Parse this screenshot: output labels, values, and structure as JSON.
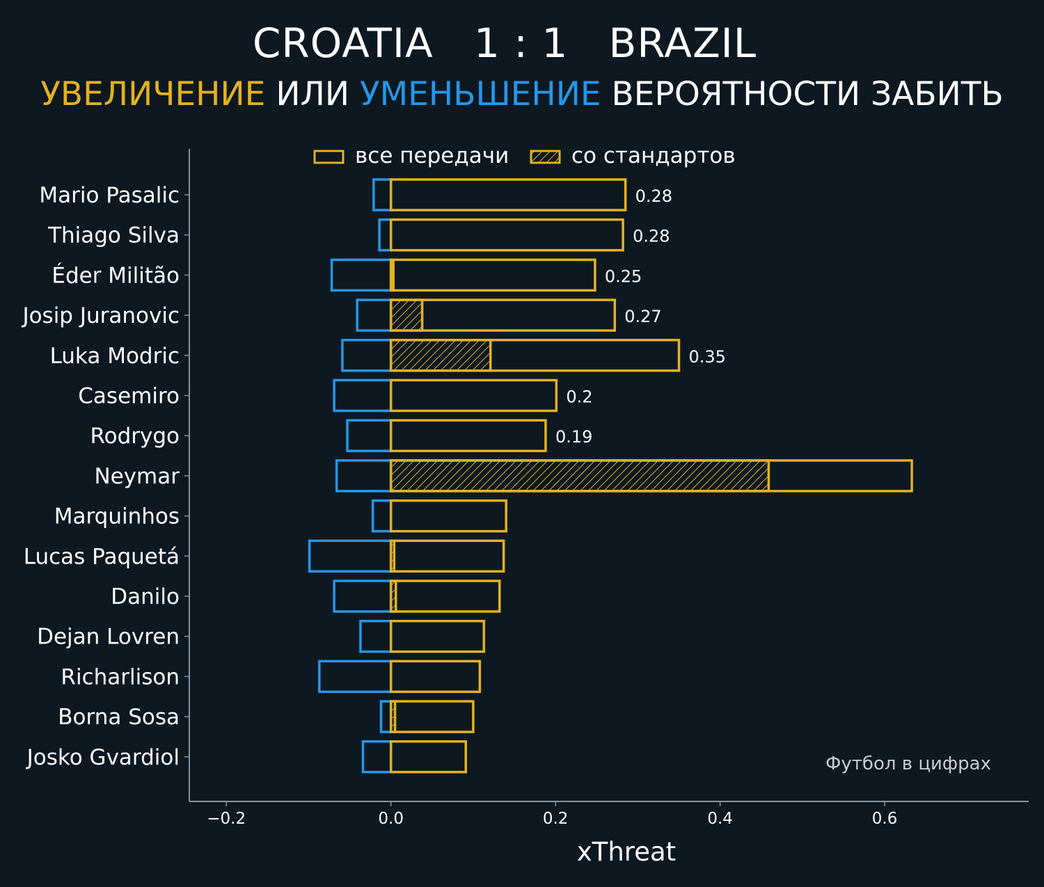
{
  "header": {
    "title": "CROATIA   1 : 1   BRAZIL",
    "subtitle_increase": "УВЕЛИЧЕНИЕ",
    "subtitle_or": "ИЛИ",
    "subtitle_decrease": "УМЕНЬШЕНИЕ",
    "subtitle_rest": "ВЕРОЯТНОСТИ ЗАБИТЬ"
  },
  "colors": {
    "background": "#0e1821",
    "increase": "#e3b122",
    "decrease": "#2596e8",
    "axis": "#8a949c",
    "text": "#ffffff"
  },
  "chart_data": {
    "type": "bar",
    "orientation": "horizontal",
    "xlabel": "xThreat",
    "xlim": [
      -0.245,
      0.775
    ],
    "xticks": [
      -0.2,
      0.0,
      0.2,
      0.4,
      0.6
    ],
    "xtick_labels": [
      "−0.2",
      "0.0",
      "0.2",
      "0.4",
      "0.6"
    ],
    "legend": {
      "position": "top",
      "entries": [
        "все передачи",
        "со стандартов"
      ]
    },
    "watermark": "Футбол в цифрах",
    "players": [
      "Mario Pasalic",
      "Thiago Silva",
      "Éder Militão",
      "Josip Juranovic",
      "Luka Modric",
      "Casemiro",
      "Rodrygo",
      "Neymar",
      "Marquinhos",
      "Lucas Paquetá",
      "Danilo",
      "Dejan Lovren",
      "Richarlison",
      "Borna Sosa",
      "Josko Gvardiol"
    ],
    "series": [
      {
        "name": "все передачи",
        "kind": "positive",
        "values": [
          0.285,
          0.282,
          0.248,
          0.272,
          0.35,
          0.201,
          0.188,
          0.633,
          0.14,
          0.137,
          0.132,
          0.113,
          0.108,
          0.1,
          0.091
        ]
      },
      {
        "name": "все передачи",
        "kind": "negative",
        "values": [
          -0.021,
          -0.014,
          -0.072,
          -0.041,
          -0.059,
          -0.069,
          -0.053,
          -0.066,
          -0.022,
          -0.099,
          -0.069,
          -0.037,
          -0.087,
          -0.012,
          -0.034
        ]
      },
      {
        "name": "со стандартов",
        "kind": "set_piece",
        "values": [
          0,
          0,
          0.003,
          0.038,
          0.121,
          0,
          0,
          0.459,
          0,
          0.004,
          0.006,
          0,
          0,
          0.005,
          0
        ]
      }
    ],
    "data_labels": [
      "0.28",
      "0.28",
      "0.25",
      "0.27",
      "0.35",
      "0.2",
      "0.19",
      "",
      "",
      "",
      "",
      "",
      "",
      "",
      ""
    ]
  }
}
